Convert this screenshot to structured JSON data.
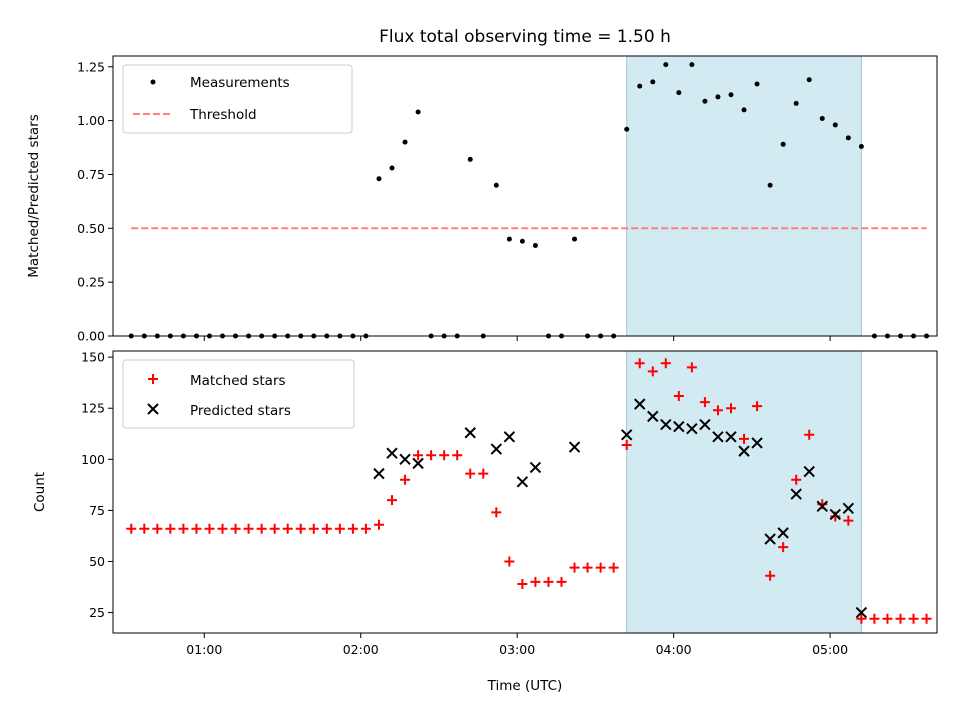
{
  "chart_data": [
    {
      "type": "scatter",
      "title": "Flux total observing time = 1.50 h",
      "xlabel": "",
      "ylabel": "Matched/Predicted stars",
      "xlim": [
        "00:25",
        "05:41"
      ],
      "ylim": [
        0,
        1.3
      ],
      "yticks": [
        "0.00",
        "0.25",
        "0.50",
        "0.75",
        "1.00",
        "1.25"
      ],
      "xticks": [
        "01:00",
        "02:00",
        "03:00",
        "04:00",
        "05:00"
      ],
      "grid": false,
      "legend_position": "upper-left",
      "shaded_span": {
        "start": "03:42",
        "end": "05:12",
        "color": "#add8e6"
      },
      "series": [
        {
          "name": "Measurements",
          "color": "#000000",
          "marker": "dot",
          "points": [
            [
              "00:32",
              0
            ],
            [
              "00:37",
              0
            ],
            [
              "00:42",
              0
            ],
            [
              "00:47",
              0
            ],
            [
              "00:52",
              0
            ],
            [
              "00:57",
              0
            ],
            [
              "01:02",
              0
            ],
            [
              "01:07",
              0
            ],
            [
              "01:12",
              0
            ],
            [
              "01:17",
              0
            ],
            [
              "01:22",
              0
            ],
            [
              "01:27",
              0
            ],
            [
              "01:32",
              0
            ],
            [
              "01:37",
              0
            ],
            [
              "01:42",
              0
            ],
            [
              "01:47",
              0
            ],
            [
              "01:52",
              0
            ],
            [
              "01:57",
              0
            ],
            [
              "02:02",
              0
            ],
            [
              "02:07",
              0.73
            ],
            [
              "02:12",
              0.78
            ],
            [
              "02:17",
              0.9
            ],
            [
              "02:22",
              1.04
            ],
            [
              "02:27",
              0
            ],
            [
              "02:32",
              0
            ],
            [
              "02:37",
              0
            ],
            [
              "02:42",
              0.82
            ],
            [
              "02:47",
              0
            ],
            [
              "02:52",
              0.7
            ],
            [
              "02:57",
              0.45
            ],
            [
              "03:02",
              0.44
            ],
            [
              "03:07",
              0.42
            ],
            [
              "03:12",
              0
            ],
            [
              "03:17",
              0
            ],
            [
              "03:22",
              0.45
            ],
            [
              "03:27",
              0
            ],
            [
              "03:32",
              0
            ],
            [
              "03:37",
              0
            ],
            [
              "03:42",
              0.96
            ],
            [
              "03:47",
              1.16
            ],
            [
              "03:52",
              1.18
            ],
            [
              "03:57",
              1.26
            ],
            [
              "04:02",
              1.13
            ],
            [
              "04:07",
              1.26
            ],
            [
              "04:12",
              1.09
            ],
            [
              "04:17",
              1.11
            ],
            [
              "04:22",
              1.12
            ],
            [
              "04:27",
              1.05
            ],
            [
              "04:32",
              1.17
            ],
            [
              "04:37",
              0.7
            ],
            [
              "04:42",
              0.89
            ],
            [
              "04:47",
              1.08
            ],
            [
              "04:52",
              1.19
            ],
            [
              "04:57",
              1.01
            ],
            [
              "05:02",
              0.98
            ],
            [
              "05:07",
              0.92
            ],
            [
              "05:12",
              0.88
            ],
            [
              "05:17",
              0
            ],
            [
              "05:22",
              0
            ],
            [
              "05:27",
              0
            ],
            [
              "05:32",
              0
            ],
            [
              "05:37",
              0
            ]
          ]
        },
        {
          "name": "Threshold",
          "color": "#ff7f7f",
          "style": "dashed-line",
          "points": [
            [
              "00:32",
              0.5
            ],
            [
              "05:37",
              0.5
            ]
          ]
        }
      ]
    },
    {
      "type": "scatter",
      "title": "",
      "xlabel": "Time (UTC)",
      "ylabel": "Count",
      "xlim": [
        "00:25",
        "05:41"
      ],
      "ylim": [
        15,
        153
      ],
      "yticks": [
        "25",
        "50",
        "75",
        "100",
        "125",
        "150"
      ],
      "xticks": [
        "01:00",
        "02:00",
        "03:00",
        "04:00",
        "05:00"
      ],
      "grid": false,
      "legend_position": "upper-left",
      "shaded_span": {
        "start": "03:42",
        "end": "05:12",
        "color": "#add8e6"
      },
      "series": [
        {
          "name": "Matched stars",
          "color": "#ff0000",
          "marker": "plus",
          "points": [
            [
              "00:32",
              66
            ],
            [
              "00:37",
              66
            ],
            [
              "00:42",
              66
            ],
            [
              "00:47",
              66
            ],
            [
              "00:52",
              66
            ],
            [
              "00:57",
              66
            ],
            [
              "01:02",
              66
            ],
            [
              "01:07",
              66
            ],
            [
              "01:12",
              66
            ],
            [
              "01:17",
              66
            ],
            [
              "01:22",
              66
            ],
            [
              "01:27",
              66
            ],
            [
              "01:32",
              66
            ],
            [
              "01:37",
              66
            ],
            [
              "01:42",
              66
            ],
            [
              "01:47",
              66
            ],
            [
              "01:52",
              66
            ],
            [
              "01:57",
              66
            ],
            [
              "02:02",
              66
            ],
            [
              "02:07",
              68
            ],
            [
              "02:12",
              80
            ],
            [
              "02:17",
              90
            ],
            [
              "02:22",
              102
            ],
            [
              "02:27",
              102
            ],
            [
              "02:32",
              102
            ],
            [
              "02:37",
              102
            ],
            [
              "02:42",
              93
            ],
            [
              "02:47",
              93
            ],
            [
              "02:52",
              74
            ],
            [
              "02:57",
              50
            ],
            [
              "03:02",
              39
            ],
            [
              "03:07",
              40
            ],
            [
              "03:12",
              40
            ],
            [
              "03:17",
              40
            ],
            [
              "03:22",
              47
            ],
            [
              "03:27",
              47
            ],
            [
              "03:32",
              47
            ],
            [
              "03:37",
              47
            ],
            [
              "03:42",
              107
            ],
            [
              "03:47",
              147
            ],
            [
              "03:52",
              143
            ],
            [
              "03:57",
              147
            ],
            [
              "04:02",
              131
            ],
            [
              "04:07",
              145
            ],
            [
              "04:12",
              128
            ],
            [
              "04:17",
              124
            ],
            [
              "04:22",
              125
            ],
            [
              "04:27",
              110
            ],
            [
              "04:32",
              126
            ],
            [
              "04:37",
              43
            ],
            [
              "04:42",
              57
            ],
            [
              "04:47",
              90
            ],
            [
              "04:52",
              112
            ],
            [
              "04:57",
              78
            ],
            [
              "05:02",
              72
            ],
            [
              "05:07",
              70
            ],
            [
              "05:12",
              22
            ],
            [
              "05:17",
              22
            ],
            [
              "05:22",
              22
            ],
            [
              "05:27",
              22
            ],
            [
              "05:32",
              22
            ],
            [
              "05:37",
              22
            ]
          ]
        },
        {
          "name": "Predicted stars",
          "color": "#000000",
          "marker": "x",
          "points": [
            [
              "02:07",
              93
            ],
            [
              "02:12",
              103
            ],
            [
              "02:17",
              100
            ],
            [
              "02:22",
              98
            ],
            [
              "02:42",
              113
            ],
            [
              "02:52",
              105
            ],
            [
              "02:57",
              111
            ],
            [
              "03:02",
              89
            ],
            [
              "03:07",
              96
            ],
            [
              "03:22",
              106
            ],
            [
              "03:42",
              112
            ],
            [
              "03:47",
              127
            ],
            [
              "03:52",
              121
            ],
            [
              "03:57",
              117
            ],
            [
              "04:02",
              116
            ],
            [
              "04:07",
              115
            ],
            [
              "04:12",
              117
            ],
            [
              "04:17",
              111
            ],
            [
              "04:22",
              111
            ],
            [
              "04:27",
              104
            ],
            [
              "04:32",
              108
            ],
            [
              "04:37",
              61
            ],
            [
              "04:42",
              64
            ],
            [
              "04:47",
              83
            ],
            [
              "04:52",
              94
            ],
            [
              "04:57",
              77
            ],
            [
              "05:02",
              73
            ],
            [
              "05:07",
              76
            ],
            [
              "05:12",
              25
            ]
          ]
        }
      ]
    }
  ]
}
